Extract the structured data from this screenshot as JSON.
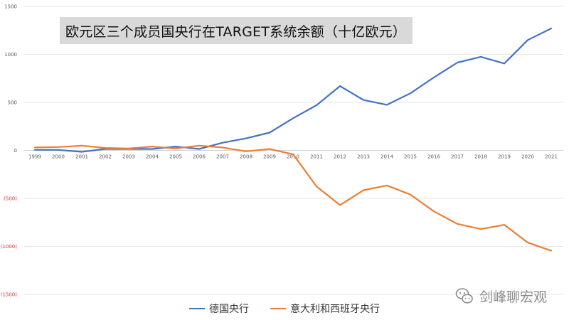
{
  "chart_data": {
    "type": "line",
    "title": "欧元区三个成员国央行在TARGET系统余额（十亿欧元）",
    "categories": [
      "1999",
      "2000",
      "2001",
      "2002",
      "2003",
      "2004",
      "2005",
      "2006",
      "2007",
      "2008",
      "2009",
      "2010",
      "2011",
      "2012",
      "2013",
      "2014",
      "2015",
      "2016",
      "2017",
      "2018",
      "2019",
      "2020",
      "2021"
    ],
    "ylim": [
      -1500,
      1500
    ],
    "yticks": [
      {
        "value": 1500,
        "label": "1500"
      },
      {
        "value": 1000,
        "label": "1000"
      },
      {
        "value": 500,
        "label": "500"
      },
      {
        "value": 0,
        "label": "0"
      },
      {
        "value": -500,
        "label": "(500)"
      },
      {
        "value": -1000,
        "label": "(1000)"
      },
      {
        "value": -1500,
        "label": "(1500)"
      }
    ],
    "grid": true,
    "legend_position": "bottom",
    "series": [
      {
        "name": "德国央行",
        "color": "#4472C4",
        "values": [
          5,
          5,
          -15,
          15,
          15,
          15,
          40,
          15,
          80,
          125,
          185,
          335,
          470,
          670,
          525,
          475,
          595,
          760,
          915,
          975,
          905,
          1150,
          1270
        ]
      },
      {
        "name": "意大利和西班牙央行",
        "color": "#ED7D31",
        "values": [
          30,
          35,
          50,
          25,
          20,
          40,
          20,
          50,
          30,
          -10,
          15,
          -40,
          -375,
          -570,
          -415,
          -365,
          -460,
          -635,
          -765,
          -820,
          -775,
          -960,
          -1045
        ]
      }
    ],
    "negative_label_color": "#e03030"
  },
  "watermark": {
    "text": "剑峰聊宏观",
    "icon": "wechat-icon"
  }
}
